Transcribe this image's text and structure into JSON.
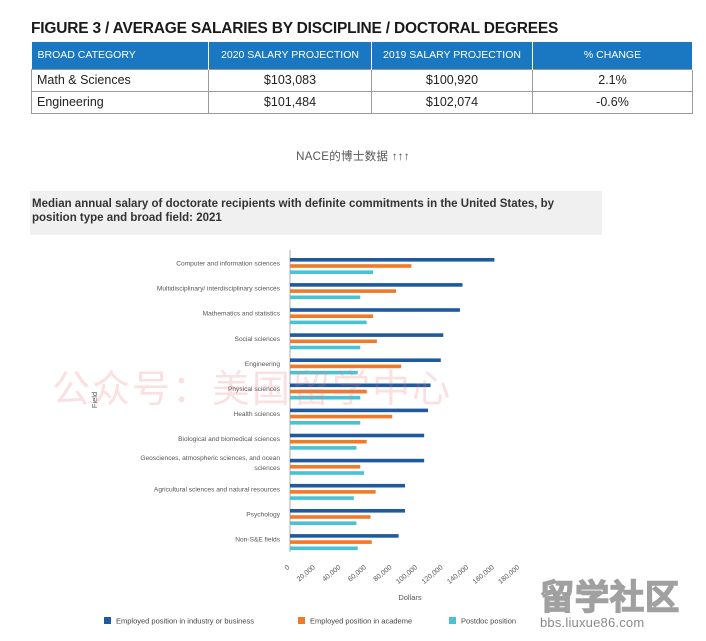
{
  "figure_title": "FIGURE 3 / AVERAGE SALARIES BY DISCIPLINE / DOCTORAL DEGREES",
  "table": {
    "headers": [
      "BROAD CATEGORY",
      "2020 SALARY PROJECTION",
      "2019 SALARY PROJECTION",
      "% CHANGE"
    ],
    "rows": [
      [
        "Math & Sciences",
        "$103,083",
        "$100,920",
        "2.1%"
      ],
      [
        "Engineering",
        "$101,484",
        "$102,074",
        "-0.6%"
      ]
    ],
    "header_color": "#1a78c2"
  },
  "caption": "NACE的博士数据 ↑↑↑",
  "watermark_text": "公众号：美国留学中心",
  "logo": {
    "name": "留学社区",
    "url": "bbs.liuxue86.com"
  },
  "chart_data": {
    "type": "bar",
    "orientation": "horizontal",
    "title": "Median annual salary of doctorate recipients with definite commitments in the United States, by position type and broad field: 2021",
    "xlabel": "Dollars",
    "ylabel": "Field",
    "xlim": [
      0,
      180000
    ],
    "xticks": [
      "0",
      "20,000",
      "40,000",
      "60,000",
      "80,000",
      "100,000",
      "120,000",
      "140,000",
      "160,000",
      "180,000"
    ],
    "grid": false,
    "legend_position": "bottom",
    "categories": [
      "Computer and information sciences",
      "Multidisciplinary/ interdisciplinary sciences",
      "Mathematics and statistics",
      "Social sciences",
      "Engineering",
      "Physical sciences",
      "Health sciences",
      "Biological and biomedical sciences",
      "Geosciences, atmospheric sciences, and ocean sciences",
      "Agricultural sciences and natural resources",
      "Psychology",
      "Non-S&E fields"
    ],
    "series": [
      {
        "name": "Employed position in industry or business",
        "color": "#1f5aa0",
        "values": [
          160000,
          135000,
          133000,
          120000,
          118000,
          110000,
          108000,
          105000,
          105000,
          90000,
          90000,
          85000
        ]
      },
      {
        "name": "Employed position in academe",
        "color": "#f07a2a",
        "values": [
          95000,
          83000,
          65000,
          68000,
          87000,
          60000,
          80000,
          60000,
          55000,
          67000,
          63000,
          64000
        ]
      },
      {
        "name": "Postdoc position",
        "color": "#49c3d4",
        "values": [
          65000,
          55000,
          60000,
          55000,
          53000,
          55000,
          55000,
          52000,
          58000,
          50000,
          52000,
          53000
        ]
      }
    ]
  }
}
